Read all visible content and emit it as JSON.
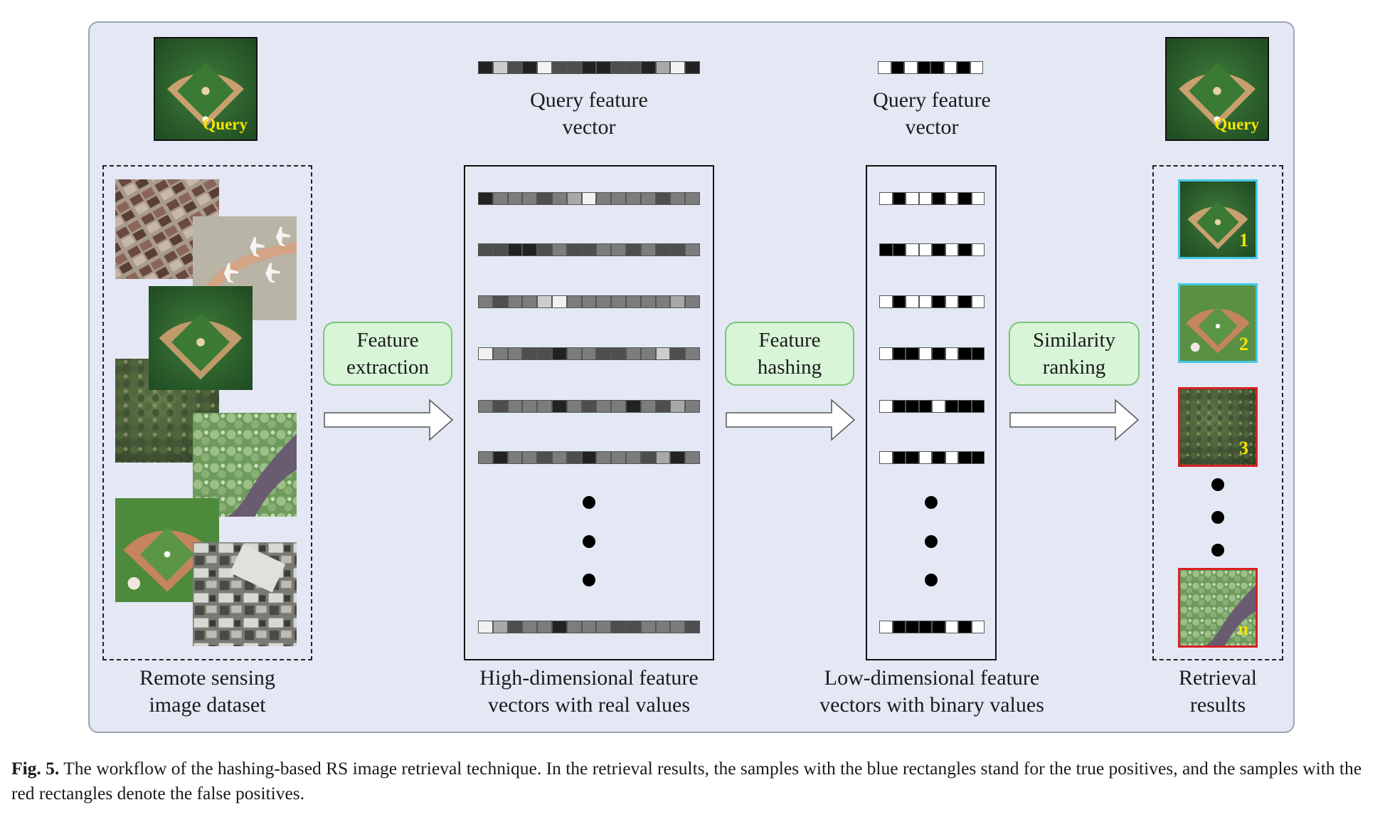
{
  "diagram": {
    "query_tag": "Query",
    "query_feature_label_top": "Query feature",
    "query_feature_label_bottom": "vector",
    "steps": {
      "extraction": [
        "Feature",
        "extraction"
      ],
      "hashing": [
        "Feature",
        "hashing"
      ],
      "ranking": [
        "Similarity",
        "ranking"
      ]
    },
    "captions": {
      "dataset": [
        "Remote sensing",
        "image dataset"
      ],
      "high_dim": [
        "High-dimensional feature",
        "vectors with real values"
      ],
      "low_dim": [
        "Low-dimensional feature",
        "vectors with binary values"
      ],
      "results": [
        "Retrieval",
        "results"
      ]
    },
    "result_ranks": [
      "1",
      "2",
      "3",
      "n"
    ],
    "colors": {
      "panel_bg": "#e4e8f5",
      "step_fill": "#d8f5d8",
      "step_border": "#7cc47c",
      "true_positive_border": "#45c8e8",
      "false_positive_border": "#d82020",
      "rank_label": "#f5e400"
    }
  },
  "caption": {
    "label": "Fig. 5.",
    "text": "The workflow of the hashing-based RS image retrieval technique. In the retrieval results, the samples with the blue rectangles stand for the true positives, and the samples with the red rectangles denote the false positives."
  }
}
